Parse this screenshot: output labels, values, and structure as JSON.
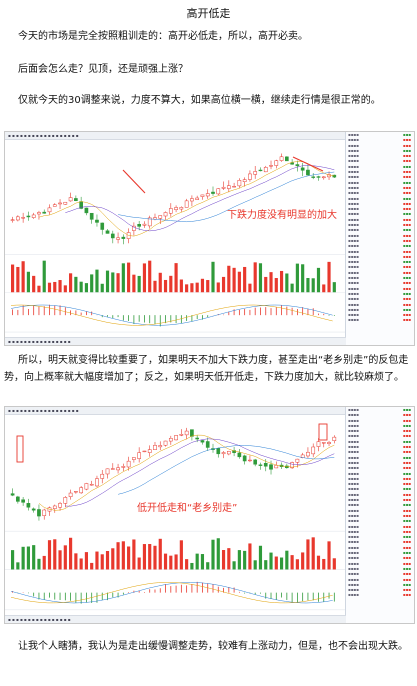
{
  "title": "高开低走",
  "paragraphs": [
    "今天的市场是完全按照粗训走的：高开必低走，所以，高开必卖。",
    "后面会怎么走？见顶，还是顽强上涨？",
    "仅就今天的30调整来说，力度不算大，如果高位横一横，继续走行情是很正常的。",
    "所以，明天就变得比较重要了，如果明天不加大下跌力度，甚至走出“老乡别走”的反包走势，向上概率就大幅度增加了；反之，如果明天低开低走，下跌力度加大，就比较麻烦了。",
    "让我个人瞎猜，我认为是走出缓慢调整走势，较难有上涨动力，但是，也不会出现大跌。"
  ],
  "screenshots": [
    {
      "annotation": "下跌力度没有明显的加大"
    },
    {
      "annotation": "低开低走和“老乡别走”"
    }
  ],
  "colors": {
    "up": "#e8382d",
    "down": "#2f9a3a",
    "annotation": "#e8382d"
  }
}
